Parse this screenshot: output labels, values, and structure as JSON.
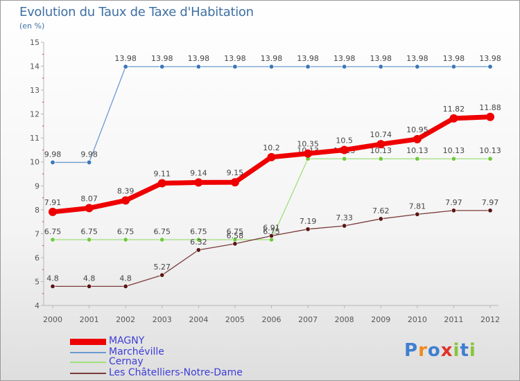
{
  "title": "Evolution du Taux de Taxe d'Habitation",
  "subtitle": "(en %)",
  "chart_data": {
    "type": "line",
    "title": "Evolution du Taux de Taxe d'Habitation",
    "ylabel": "(en %)",
    "xlabel": "",
    "ylim": [
      4,
      15
    ],
    "yticks": [
      "4",
      "5",
      "6",
      "7",
      "8",
      "9",
      "10",
      "11",
      "12",
      "13",
      "14",
      "15"
    ],
    "x": [
      "2000",
      "2001",
      "2002",
      "2003",
      "2004",
      "2005",
      "2006",
      "2007",
      "2008",
      "2009",
      "2010",
      "2011",
      "2012"
    ],
    "series": [
      {
        "name": "Marchéville",
        "color": "#6b9ad0",
        "marker": "#3b77b8",
        "values": [
          9.98,
          9.98,
          13.98,
          13.98,
          13.98,
          13.98,
          13.98,
          13.98,
          13.98,
          13.98,
          13.98,
          13.98,
          13.98
        ],
        "labels": [
          "9.98",
          "9.98",
          "13.98",
          "13.98",
          "13.98",
          "13.98",
          "13.98",
          "13.98",
          "13.98",
          "13.98",
          "13.98",
          "13.98",
          "13.98"
        ]
      },
      {
        "name": "Cernay",
        "color": "#9ee07a",
        "marker": "#6fc93c",
        "values": [
          6.75,
          6.75,
          6.75,
          6.75,
          6.75,
          6.75,
          6.75,
          10.13,
          10.13,
          10.13,
          10.13,
          10.13,
          10.13
        ],
        "labels": [
          "6.75",
          "6.75",
          "6.75",
          "6.75",
          "6.75",
          "6.75",
          "6.75",
          "10.13",
          "10.13",
          "10.13",
          "10.13",
          "10.13",
          "10.13"
        ]
      },
      {
        "name": "Les Châtelliers-Notre-Dame",
        "color": "#7a3a3a",
        "marker": "#5a1515",
        "values": [
          4.8,
          4.8,
          4.8,
          5.27,
          6.32,
          6.58,
          6.91,
          7.19,
          7.33,
          7.62,
          7.81,
          7.97,
          7.97
        ],
        "labels": [
          "4.8",
          "4.8",
          "4.8",
          "5.27",
          "6.32",
          "6.58",
          "6.91",
          "7.19",
          "7.33",
          "7.62",
          "7.81",
          "7.97",
          "7.97"
        ]
      },
      {
        "name": "MAGNY",
        "color": "#ee0000",
        "marker": "#ee0000",
        "values": [
          7.91,
          8.07,
          8.39,
          9.11,
          9.14,
          9.15,
          10.2,
          10.35,
          10.5,
          10.74,
          10.95,
          11.82,
          11.88
        ],
        "labels": [
          "7.91",
          "8.07",
          "8.39",
          "9.11",
          "9.14",
          "9.15",
          "10.2",
          "10.35",
          "10.5",
          "10.74",
          "10.95",
          "11.82",
          "11.88"
        ]
      }
    ],
    "legend": [
      "MAGNY",
      "Marchéville",
      "Cernay",
      "Les Châtelliers-Notre-Dame"
    ]
  },
  "legend": {
    "magny": "MAGNY",
    "marcheville": "Marchéville",
    "cernay": "Cernay",
    "chatelliers": "Les Châtelliers-Notre-Dame"
  },
  "logo": "Proxiti",
  "colors": {
    "title": "#3e6fa3",
    "legend_text": "#3d3dd6"
  }
}
